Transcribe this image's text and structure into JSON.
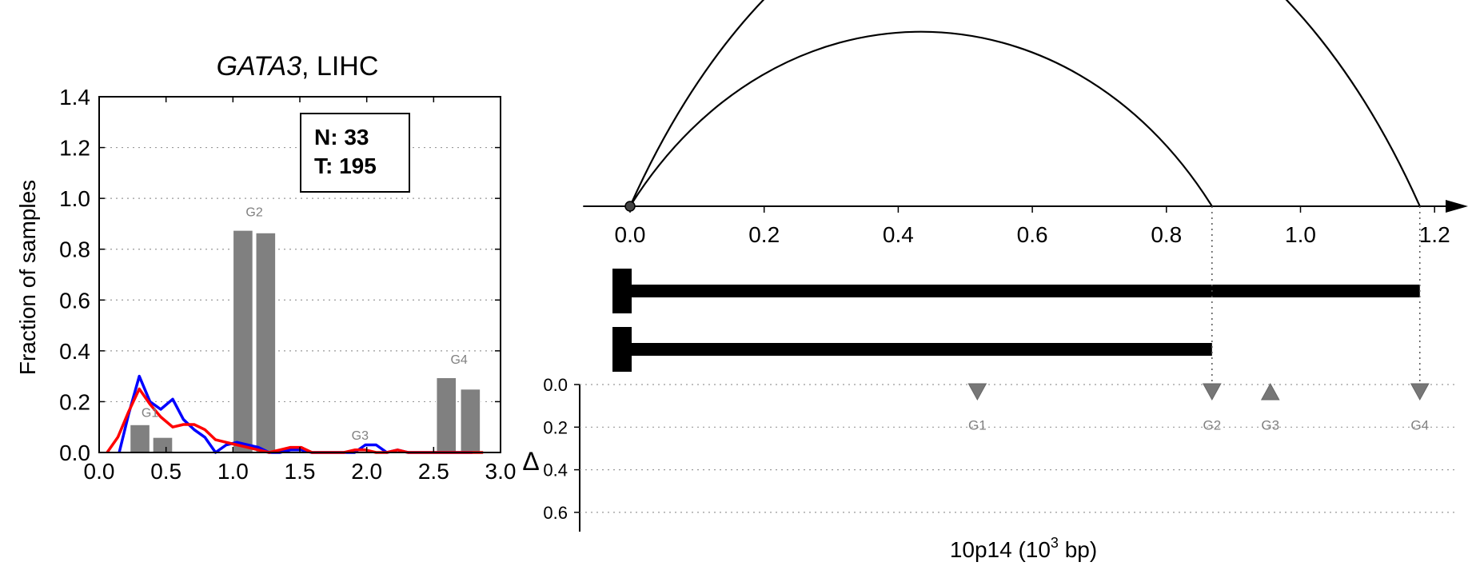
{
  "chart_data": [
    {
      "type": "bar",
      "title_gene": "GATA3",
      "title_rest": ", LIHC",
      "ylabel": "Fraction of samples",
      "xlim": [
        0.0,
        3.0
      ],
      "ylim": [
        0.0,
        1.4
      ],
      "xticks": [
        "0.0",
        "0.5",
        "1.0",
        "1.5",
        "2.0",
        "2.5",
        "3.0"
      ],
      "yticks": [
        "0.0",
        "0.2",
        "0.4",
        "0.6",
        "0.8",
        "1.0",
        "1.2",
        "1.4"
      ],
      "grid": "horizontal-dotted",
      "counts": {
        "normal": "N: 33",
        "tumor": "T: 195"
      },
      "bars": [
        {
          "x0": 0.23,
          "x1": 0.38,
          "value": 0.11
        },
        {
          "x0": 0.4,
          "x1": 0.55,
          "value": 0.06
        },
        {
          "x0": 1.0,
          "x1": 1.15,
          "value": 0.875
        },
        {
          "x0": 1.17,
          "x1": 1.32,
          "value": 0.865
        },
        {
          "x0": 2.52,
          "x1": 2.67,
          "value": 0.295
        },
        {
          "x0": 2.7,
          "x1": 2.85,
          "value": 0.25
        }
      ],
      "bar_labels": [
        {
          "text": "G1",
          "x": 0.38,
          "y": 0.14
        },
        {
          "text": "G2",
          "x": 1.16,
          "y": 0.93
        },
        {
          "text": "G3",
          "x": 1.95,
          "y": 0.05
        },
        {
          "text": "G4",
          "x": 2.69,
          "y": 0.35
        }
      ],
      "series": [
        {
          "color": "#0000ff",
          "x": [
            0.15,
            0.22,
            0.3,
            0.38,
            0.46,
            0.55,
            0.63,
            0.71,
            0.79,
            0.87,
            0.95,
            1.03,
            1.11,
            1.19,
            1.27,
            1.35,
            1.43,
            1.51,
            1.59,
            1.67,
            1.75,
            1.83,
            1.91,
            1.99,
            2.07,
            2.15,
            2.23,
            2.31,
            2.39,
            2.47,
            2.55,
            2.63,
            2.71,
            2.79
          ],
          "y": [
            0.0,
            0.15,
            0.3,
            0.2,
            0.17,
            0.21,
            0.13,
            0.09,
            0.06,
            0.0,
            0.03,
            0.04,
            0.03,
            0.02,
            0.0,
            0.0,
            0.01,
            0.01,
            0.0,
            0.0,
            0.0,
            0.0,
            0.0,
            0.03,
            0.03,
            0.0,
            0.01,
            0.0,
            0.0,
            0.0,
            0.0,
            0.0,
            0.0,
            0.0
          ]
        },
        {
          "color": "#ff0000",
          "x": [
            0.06,
            0.14,
            0.22,
            0.3,
            0.38,
            0.46,
            0.55,
            0.63,
            0.71,
            0.79,
            0.87,
            0.95,
            1.03,
            1.11,
            1.19,
            1.27,
            1.35,
            1.43,
            1.51,
            1.59,
            1.67,
            1.75,
            1.83,
            1.91,
            1.99,
            2.07,
            2.15,
            2.23,
            2.31,
            2.39,
            2.47,
            2.55,
            2.63,
            2.71,
            2.79,
            2.87
          ],
          "y": [
            0.0,
            0.06,
            0.16,
            0.25,
            0.19,
            0.14,
            0.1,
            0.11,
            0.11,
            0.09,
            0.05,
            0.04,
            0.03,
            0.02,
            0.01,
            0.0,
            0.01,
            0.02,
            0.02,
            0.0,
            0.0,
            0.0,
            0.0,
            0.01,
            0.01,
            0.0,
            0.0,
            0.01,
            0.0,
            0.0,
            0.0,
            0.0,
            0.0,
            0.0,
            0.0,
            0.0
          ]
        }
      ]
    },
    {
      "type": "diagram",
      "xlim": [
        -0.07,
        1.25
      ],
      "xticks": [
        "0.0",
        "0.2",
        "0.4",
        "0.6",
        "0.8",
        "1.0",
        "1.2"
      ],
      "origin": 0.0,
      "arcs": [
        {
          "end": 0.868,
          "height_ratio": 0.3
        },
        {
          "end": 1.178,
          "height_ratio": 0.42
        }
      ],
      "isoforms": [
        {
          "start": 0.0,
          "end": 1.178
        },
        {
          "start": 0.0,
          "end": 0.868
        }
      ],
      "xlabel_main": "10p14 (10",
      "xlabel_sup": "3",
      "xlabel_tail": " bp)",
      "delta_label": "Δ",
      "delta_yticks": [
        "0.0",
        "0.2",
        "0.4",
        "0.6"
      ],
      "delta_ylim": [
        0.0,
        0.7
      ],
      "markers": [
        {
          "text": "G1",
          "pos": 0.518,
          "delta": 0.03,
          "direction": "down"
        },
        {
          "text": "G2",
          "pos": 0.868,
          "delta": 0.03,
          "direction": "down"
        },
        {
          "text": "G3",
          "pos": 0.955,
          "delta": 0.03,
          "direction": "up"
        },
        {
          "text": "G4",
          "pos": 1.178,
          "delta": 0.03,
          "direction": "down"
        }
      ]
    }
  ]
}
